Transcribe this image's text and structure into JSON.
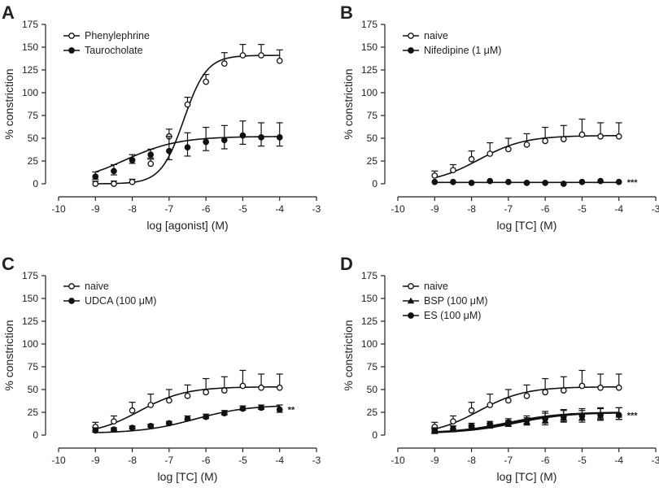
{
  "figure": {
    "panels": [
      {
        "letter": "A",
        "annotation": "",
        "ytitle": "% constriction",
        "xtitle": "log [agonist] (M)",
        "xticks": [
          "-10",
          "-9",
          "-8",
          "-7",
          "-6",
          "-5",
          "-4",
          "-3"
        ],
        "yticks": [
          "0",
          "25",
          "50",
          "75",
          "100",
          "125",
          "150",
          "175"
        ],
        "legend": [
          "Phenylephrine",
          "Taurocholate"
        ]
      },
      {
        "letter": "B",
        "annotation": "***",
        "ytitle": "% constriction",
        "xtitle": "log [TC] (M)",
        "xticks": [
          "-10",
          "-9",
          "-8",
          "-7",
          "-6",
          "-5",
          "-4",
          "-3"
        ],
        "yticks": [
          "0",
          "25",
          "50",
          "75",
          "100",
          "125",
          "150",
          "175"
        ],
        "legend": [
          "naive",
          "Nifedipine (1 μM)"
        ]
      },
      {
        "letter": "C",
        "annotation": "**",
        "ytitle": "% constriction",
        "xtitle": "log [TC] (M)",
        "xticks": [
          "-10",
          "-9",
          "-8",
          "-7",
          "-6",
          "-5",
          "-4",
          "-3"
        ],
        "yticks": [
          "0",
          "25",
          "50",
          "75",
          "100",
          "125",
          "150",
          "175"
        ],
        "legend": [
          "naive",
          "UDCA (100 μM)"
        ]
      },
      {
        "letter": "D",
        "annotation": "***",
        "ytitle": "% constriction",
        "xtitle": "log [TC] (M)",
        "xticks": [
          "-10",
          "-9",
          "-8",
          "-7",
          "-6",
          "-5",
          "-4",
          "-3"
        ],
        "yticks": [
          "0",
          "25",
          "50",
          "75",
          "100",
          "125",
          "150",
          "175"
        ],
        "legend": [
          "naive",
          "BSP (100 μM)",
          "ES (100 μM)"
        ]
      }
    ]
  },
  "chart_data": [
    {
      "type": "scatter",
      "panel": "A",
      "xlim": [
        -10,
        -3
      ],
      "ylim": [
        0,
        175
      ],
      "series": [
        {
          "name": "Phenylephrine",
          "marker": "open-circle",
          "x": [
            -9,
            -8.5,
            -8,
            -7.5,
            -7,
            -6.5,
            -6,
            -5.5,
            -5,
            -4.5,
            -4
          ],
          "y": [
            0,
            0,
            2,
            22,
            52,
            87,
            112,
            132,
            141,
            141,
            135
          ],
          "err": [
            3,
            3,
            3,
            5,
            8,
            8,
            8,
            12,
            12,
            12,
            12
          ],
          "fit": {
            "bottom": 0,
            "top": 141,
            "logEC50": -6.6,
            "hill": 1.4
          }
        },
        {
          "name": "Taurocholate",
          "marker": "filled-circle",
          "x": [
            -9,
            -8.5,
            -8,
            -7.5,
            -7,
            -6.5,
            -6,
            -5.5,
            -5,
            -4.5,
            -4
          ],
          "y": [
            8,
            14,
            26,
            32,
            36,
            40,
            46,
            48,
            53,
            51,
            51
          ],
          "err": [
            5,
            7,
            6,
            6,
            16,
            16,
            16,
            16,
            16,
            16,
            16
          ],
          "fit": {
            "bottom": 0,
            "top": 52,
            "logEC50": -8.2,
            "hill": 0.6
          }
        }
      ]
    },
    {
      "type": "scatter",
      "panel": "B",
      "xlim": [
        -10,
        -3
      ],
      "ylim": [
        0,
        175
      ],
      "series": [
        {
          "name": "naive",
          "marker": "open-circle",
          "x": [
            -9,
            -8.5,
            -8,
            -7.5,
            -7,
            -6.5,
            -6,
            -5.5,
            -5,
            -4.5,
            -4
          ],
          "y": [
            9,
            15,
            27,
            33,
            38,
            43,
            47,
            49,
            54,
            52,
            52
          ],
          "err": [
            5,
            6,
            9,
            12,
            12,
            12,
            15,
            15,
            17,
            15,
            15
          ],
          "fit": {
            "bottom": 0,
            "top": 53,
            "logEC50": -7.8,
            "hill": 0.7
          }
        },
        {
          "name": "Nifedipine (1 μM)",
          "marker": "filled-circle",
          "x": [
            -9,
            -8.5,
            -8,
            -7.5,
            -7,
            -6.5,
            -6,
            -5.5,
            -5,
            -4.5,
            -4
          ],
          "y": [
            2,
            2,
            1,
            3,
            2,
            1,
            1,
            0,
            2,
            3,
            2
          ],
          "err": [
            0,
            0,
            0,
            0,
            0,
            0,
            0,
            0,
            0,
            0,
            0
          ],
          "fit": {
            "bottom": 1.5,
            "top": 1.5,
            "logEC50": -6.5,
            "hill": 1
          }
        }
      ]
    },
    {
      "type": "scatter",
      "panel": "C",
      "xlim": [
        -10,
        -3
      ],
      "ylim": [
        0,
        175
      ],
      "series": [
        {
          "name": "naive",
          "marker": "open-circle",
          "x": [
            -9,
            -8.5,
            -8,
            -7.5,
            -7,
            -6.5,
            -6,
            -5.5,
            -5,
            -4.5,
            -4
          ],
          "y": [
            9,
            15,
            27,
            33,
            38,
            43,
            47,
            49,
            54,
            52,
            52
          ],
          "err": [
            5,
            6,
            9,
            12,
            12,
            12,
            15,
            15,
            17,
            15,
            15
          ],
          "fit": {
            "bottom": 0,
            "top": 53,
            "logEC50": -7.8,
            "hill": 0.7
          }
        },
        {
          "name": "UDCA (100 μM)",
          "marker": "filled-circle",
          "x": [
            -9,
            -8.5,
            -8,
            -7.5,
            -7,
            -6.5,
            -6,
            -5.5,
            -5,
            -4.5,
            -4
          ],
          "y": [
            5,
            6,
            8,
            10,
            13,
            18,
            20,
            24,
            29,
            30,
            28
          ],
          "err": [
            3,
            2,
            2,
            2,
            2,
            3,
            3,
            3,
            3,
            3,
            5
          ],
          "fit": {
            "bottom": 2,
            "top": 33,
            "logEC50": -6.3,
            "hill": 0.6
          }
        }
      ]
    },
    {
      "type": "scatter",
      "panel": "D",
      "xlim": [
        -10,
        -3
      ],
      "ylim": [
        0,
        175
      ],
      "series": [
        {
          "name": "naive",
          "marker": "open-circle",
          "x": [
            -9,
            -8.5,
            -8,
            -7.5,
            -7,
            -6.5,
            -6,
            -5.5,
            -5,
            -4.5,
            -4
          ],
          "y": [
            9,
            15,
            27,
            33,
            38,
            43,
            47,
            49,
            54,
            52,
            52
          ],
          "err": [
            5,
            6,
            9,
            12,
            12,
            12,
            15,
            15,
            17,
            15,
            15
          ],
          "fit": {
            "bottom": 0,
            "top": 53,
            "logEC50": -7.8,
            "hill": 0.7
          }
        },
        {
          "name": "BSP (100 μM)",
          "marker": "filled-triangle",
          "x": [
            -9,
            -8.5,
            -8,
            -7.5,
            -7,
            -6.5,
            -6,
            -5.5,
            -5,
            -4.5,
            -4
          ],
          "y": [
            4,
            6,
            8,
            10,
            12,
            14,
            16,
            19,
            19,
            21,
            22
          ],
          "err": [
            3,
            4,
            3,
            3,
            4,
            5,
            8,
            8,
            8,
            8,
            8
          ],
          "fit": {
            "bottom": 2,
            "top": 25,
            "logEC50": -6.8,
            "hill": 0.6
          }
        },
        {
          "name": "ES (100 μM)",
          "marker": "filled-circle",
          "x": [
            -9,
            -8.5,
            -8,
            -7.5,
            -7,
            -6.5,
            -6,
            -5.5,
            -5,
            -4.5,
            -4
          ],
          "y": [
            5,
            7,
            10,
            12,
            14,
            16,
            18,
            20,
            21,
            22,
            22
          ],
          "err": [
            3,
            3,
            3,
            3,
            4,
            5,
            8,
            8,
            8,
            8,
            8
          ],
          "fit": {
            "bottom": 2,
            "top": 25,
            "logEC50": -7.0,
            "hill": 0.6
          }
        }
      ]
    }
  ]
}
